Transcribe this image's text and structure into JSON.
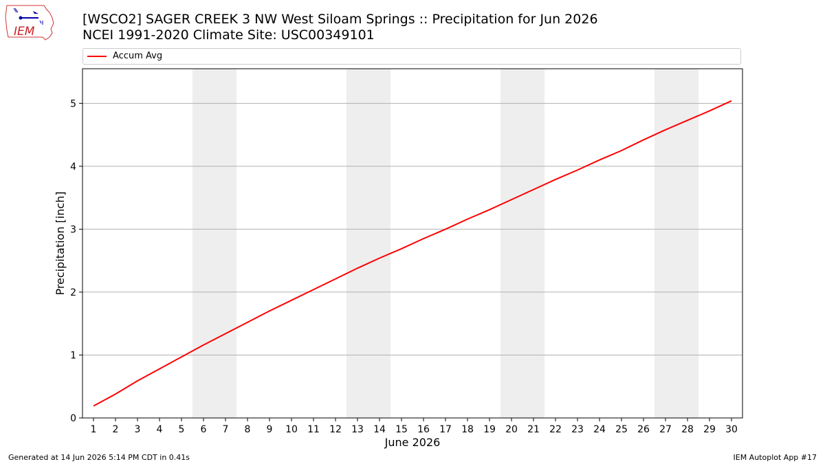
{
  "header": {
    "title_line1": "[WSCO2] SAGER CREEK 3 NW West Siloam Springs :: Precipitation for Jun 2026",
    "title_line2": "NCEI 1991-2020 Climate Site: USC00349101",
    "logo_text": "IEM"
  },
  "legend": {
    "label": "Accum Avg",
    "color": "#ff0000"
  },
  "footer": {
    "generated": "Generated at 14 Jun 2026 5:14 PM CDT in 0.41s",
    "app": "IEM Autoplot App #17"
  },
  "chart_data": {
    "type": "line",
    "xlabel": "June 2026",
    "ylabel": "Precipitation [inch]",
    "xlim": [
      0.5,
      30.5
    ],
    "ylim": [
      0,
      5.55
    ],
    "yticks": [
      0,
      1,
      2,
      3,
      4,
      5
    ],
    "grid": "horizontal",
    "legend_position": "top",
    "categories": [
      "1",
      "2",
      "3",
      "4",
      "5",
      "6",
      "7",
      "8",
      "9",
      "10",
      "11",
      "12",
      "13",
      "14",
      "15",
      "16",
      "17",
      "18",
      "19",
      "20",
      "21",
      "22",
      "23",
      "24",
      "25",
      "26",
      "27",
      "28",
      "29",
      "30"
    ],
    "weekend_bands": [
      [
        6,
        7
      ],
      [
        13,
        14
      ],
      [
        20,
        21
      ],
      [
        27,
        28
      ]
    ],
    "band_color": "#eeeeee",
    "series": [
      {
        "name": "Accum Avg",
        "color": "#ff0000",
        "x": [
          1,
          2,
          3,
          4,
          5,
          6,
          7,
          8,
          9,
          10,
          11,
          12,
          13,
          14,
          15,
          16,
          17,
          18,
          19,
          20,
          21,
          22,
          23,
          24,
          25,
          26,
          27,
          28,
          29,
          30
        ],
        "values": [
          0.19,
          0.38,
          0.59,
          0.78,
          0.97,
          1.16,
          1.34,
          1.52,
          1.7,
          1.87,
          2.04,
          2.21,
          2.38,
          2.54,
          2.69,
          2.85,
          3.0,
          3.16,
          3.31,
          3.47,
          3.63,
          3.79,
          3.94,
          4.1,
          4.25,
          4.42,
          4.58,
          4.73,
          4.88,
          5.04
        ]
      }
    ]
  }
}
